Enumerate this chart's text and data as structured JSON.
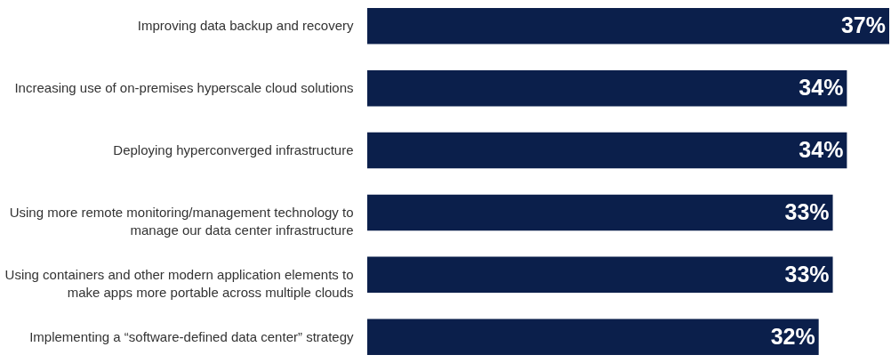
{
  "chart_data": {
    "type": "bar",
    "orientation": "horizontal",
    "grid": false,
    "categories": [
      "Improving data backup and recovery",
      "Increasing use of on-premises hyperscale cloud solutions",
      "Deploying hyperconverged infrastructure",
      "Using more remote monitoring/management technology to\nmanage our data center infrastructure",
      "Using containers and other modern application elements to\nmake apps more portable across multiple clouds",
      "Implementing a “software-defined data center” strategy"
    ],
    "values": [
      37,
      34,
      34,
      33,
      33,
      32
    ],
    "value_labels": [
      "37%",
      "34%",
      "34%",
      "33%",
      "33%",
      "32%"
    ],
    "color": "#0b1f4b"
  }
}
